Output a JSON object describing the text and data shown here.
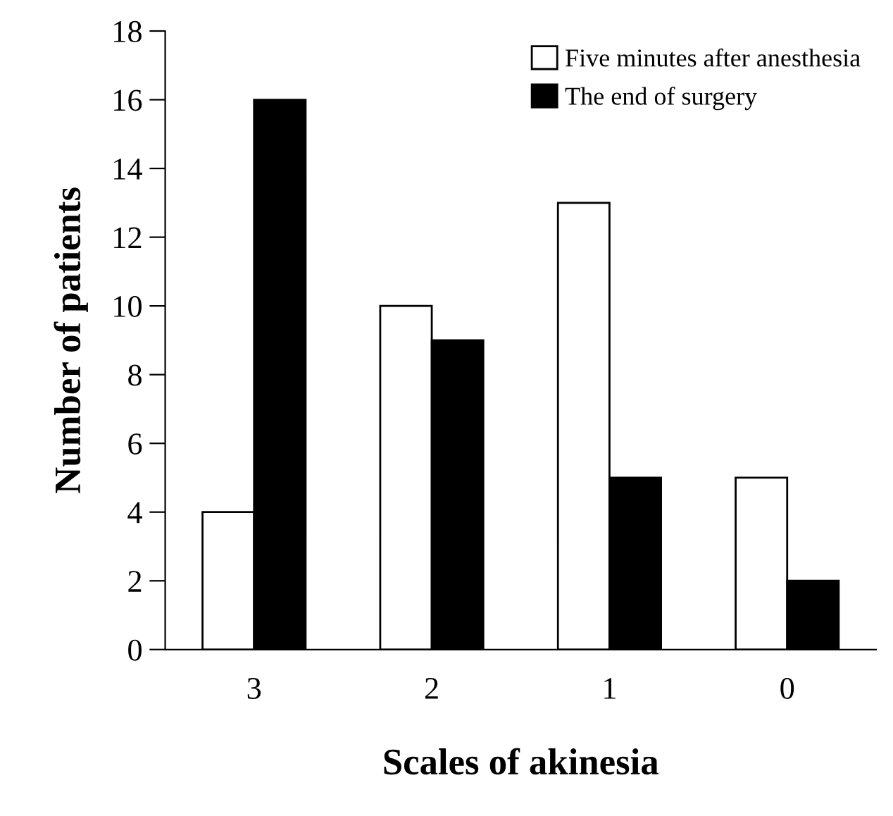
{
  "chart_data": {
    "type": "bar",
    "xlabel": "Scales of akinesia",
    "ylabel": "Number of patients",
    "categories": [
      "3",
      "2",
      "1",
      "0"
    ],
    "series": [
      {
        "name": "Five minutes after anesthesia",
        "color": "#ffffff",
        "values": [
          4,
          10,
          13,
          5
        ]
      },
      {
        "name": "The end of surgery",
        "color": "#000000",
        "values": [
          16,
          9,
          5,
          2
        ]
      }
    ],
    "ylim": [
      0,
      18
    ],
    "yticks": [
      0,
      2,
      4,
      6,
      8,
      10,
      12,
      14,
      16,
      18
    ],
    "grid": false,
    "legend": "top right"
  }
}
